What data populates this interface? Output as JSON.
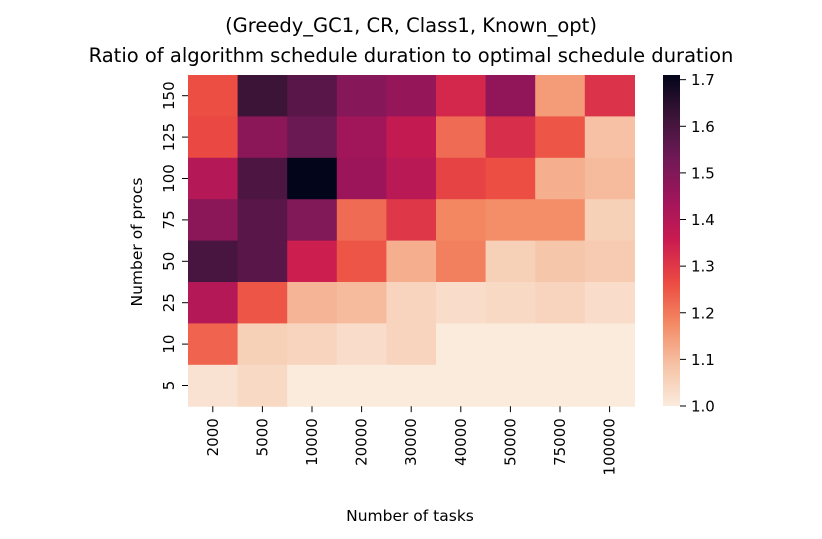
{
  "chart_data": {
    "type": "heatmap",
    "title": "(Greedy_GC1, CR, Class1, Known_opt)",
    "subtitle": "Ratio of algorithm schedule duration to optimal schedule duration",
    "xlabel": "Number of tasks",
    "ylabel": "Number of procs",
    "x_categories": [
      "2000",
      "5000",
      "10000",
      "20000",
      "30000",
      "40000",
      "50000",
      "75000",
      "100000"
    ],
    "y_categories": [
      "150",
      "125",
      "100",
      "75",
      "50",
      "25",
      "10",
      "5"
    ],
    "values": [
      [
        1.26,
        1.62,
        1.57,
        1.49,
        1.46,
        1.33,
        1.47,
        1.15,
        1.31
      ],
      [
        1.27,
        1.48,
        1.54,
        1.44,
        1.37,
        1.22,
        1.32,
        1.25,
        1.09
      ],
      [
        1.4,
        1.59,
        1.71,
        1.45,
        1.39,
        1.28,
        1.26,
        1.12,
        1.1
      ],
      [
        1.48,
        1.57,
        1.5,
        1.22,
        1.3,
        1.18,
        1.17,
        1.17,
        1.06
      ],
      [
        1.6,
        1.57,
        1.35,
        1.25,
        1.12,
        1.19,
        1.06,
        1.08,
        1.07
      ],
      [
        1.4,
        1.25,
        1.11,
        1.1,
        1.05,
        1.03,
        1.04,
        1.05,
        1.03
      ],
      [
        1.23,
        1.06,
        1.05,
        1.03,
        1.05,
        1.0,
        1.0,
        1.0,
        1.0
      ],
      [
        1.02,
        1.04,
        1.0,
        1.0,
        1.0,
        1.0,
        1.0,
        1.0,
        1.0
      ]
    ],
    "colorbar": {
      "min": 1.0,
      "max": 1.71,
      "ticks": [
        "1.0",
        "1.1",
        "1.2",
        "1.3",
        "1.4",
        "1.5",
        "1.6",
        "1.7"
      ],
      "colormap": "rocket_r"
    }
  }
}
